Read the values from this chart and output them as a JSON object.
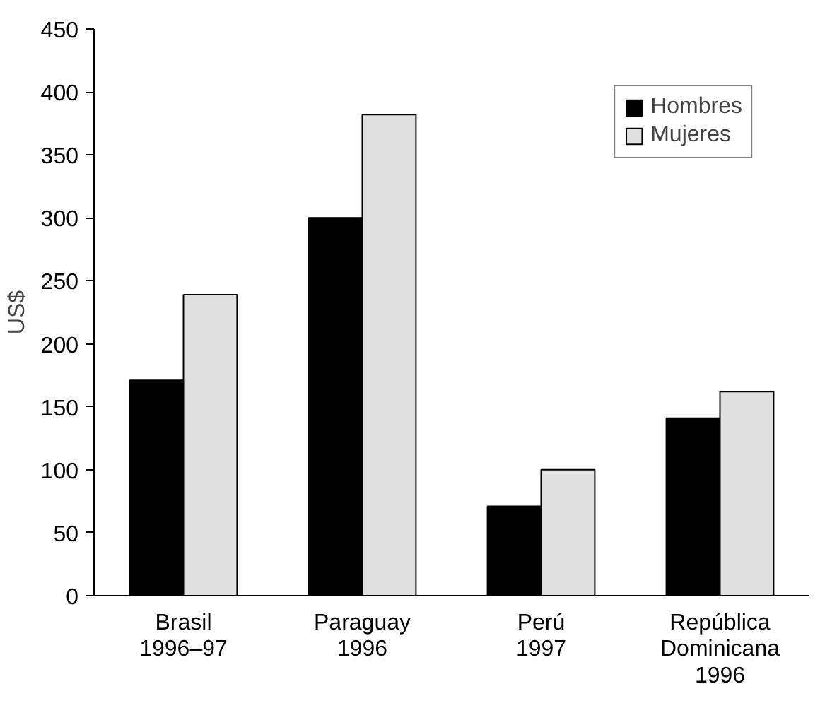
{
  "chart_data": {
    "type": "bar",
    "ylabel": "US$",
    "categories": [
      "Brasil\n1996–97",
      "Paraguay\n1996",
      "Perú\n1997",
      "República\nDominicana\n1996"
    ],
    "series": [
      {
        "name": "Hombres",
        "color": "#000000",
        "values": [
          171,
          300,
          71,
          141
        ]
      },
      {
        "name": "Mujeres",
        "color": "#e0e0e0",
        "values": [
          239,
          382,
          100,
          162
        ]
      }
    ],
    "ylim": [
      0,
      450
    ],
    "yticks": [
      0,
      50,
      100,
      150,
      200,
      250,
      300,
      350,
      400,
      450
    ],
    "grid": false,
    "legend": "top right"
  }
}
